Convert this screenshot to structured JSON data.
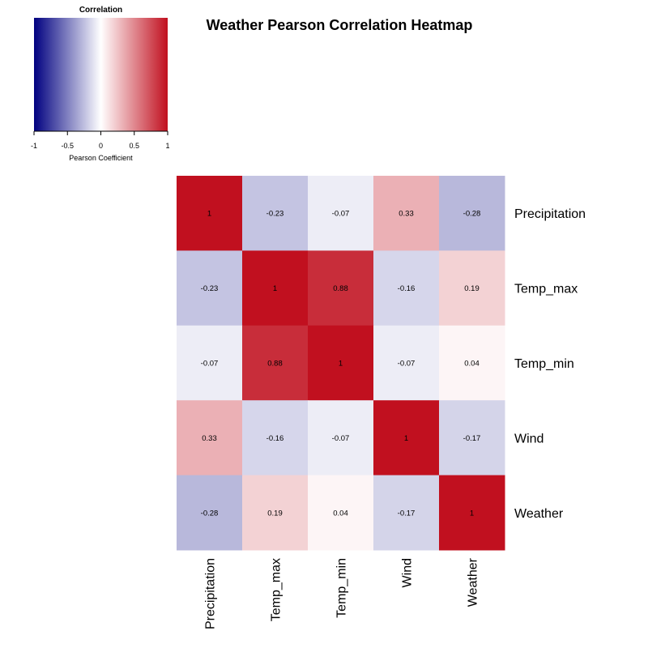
{
  "chart_data": {
    "type": "heatmap",
    "title": "Weather Pearson Correlation Heatmap",
    "rows": [
      "Precipitation",
      "Temp_max",
      "Temp_min",
      "Wind",
      "Weather"
    ],
    "columns": [
      "Precipitation",
      "Temp_max",
      "Temp_min",
      "Wind",
      "Weather"
    ],
    "values": [
      [
        1,
        -0.23,
        -0.07,
        0.33,
        -0.28
      ],
      [
        -0.23,
        1,
        0.88,
        -0.16,
        0.19
      ],
      [
        -0.07,
        0.88,
        1,
        -0.07,
        0.04
      ],
      [
        0.33,
        -0.16,
        -0.07,
        1,
        -0.17
      ],
      [
        -0.28,
        0.19,
        0.04,
        -0.17,
        1
      ]
    ],
    "cell_labels": [
      [
        "1",
        "-0.23",
        "-0.07",
        "0.33",
        "-0.28"
      ],
      [
        "-0.23",
        "1",
        "0.88",
        "-0.16",
        "0.19"
      ],
      [
        "-0.07",
        "0.88",
        "1",
        "-0.07",
        "0.04"
      ],
      [
        "0.33",
        "-0.16",
        "-0.07",
        "1",
        "-0.17"
      ],
      [
        "-0.28",
        "0.19",
        "0.04",
        "-0.17",
        "1"
      ]
    ],
    "color_scale": {
      "title": "Correlation",
      "label": "Pearson Coefficient",
      "range": [
        -1,
        1
      ],
      "ticks": [
        -1,
        -0.5,
        0,
        0.5,
        1
      ],
      "tick_labels": [
        "-1",
        "-0.5",
        "0",
        "0.5",
        "1"
      ],
      "low_color": "#000080",
      "mid_color": "#ffffff",
      "high_color": "#c1101f"
    },
    "legend_position": "top-left"
  }
}
